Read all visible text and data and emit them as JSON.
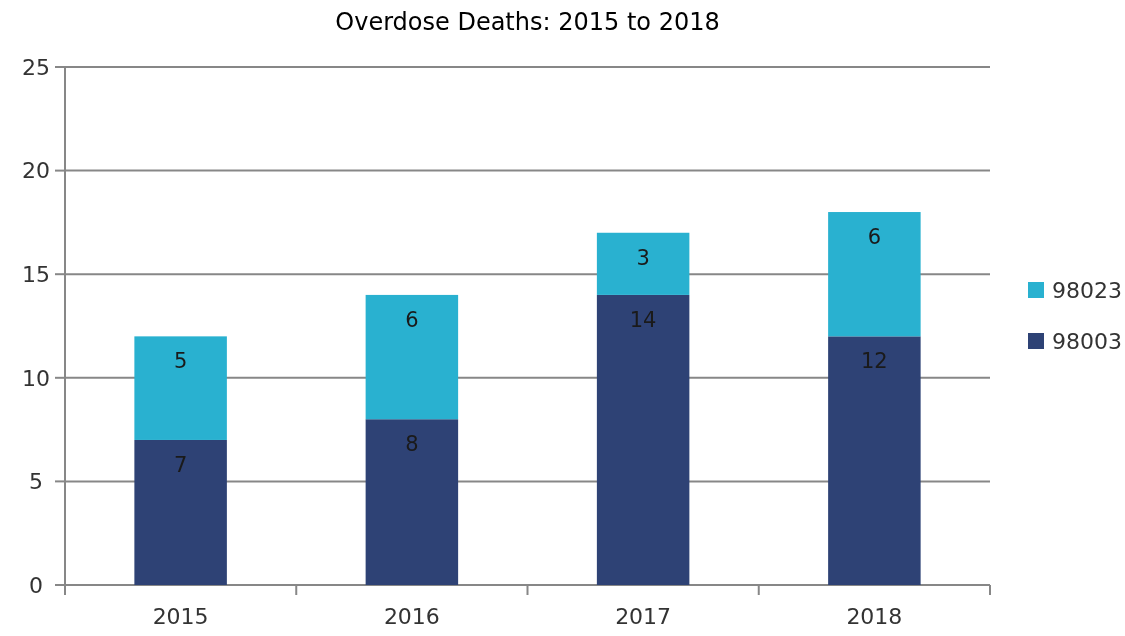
{
  "chart_data": {
    "type": "bar",
    "title": "Overdose Deaths: 2015 to 2018",
    "categories": [
      "2015",
      "2016",
      "2017",
      "2018"
    ],
    "series": [
      {
        "name": "98003",
        "color": "#2e4275",
        "values": [
          7,
          8,
          14,
          12
        ]
      },
      {
        "name": "98023",
        "color": "#29b1d0",
        "values": [
          5,
          6,
          3,
          6
        ]
      }
    ],
    "stacked": true,
    "ylim": [
      0,
      25
    ],
    "yticks": [
      0,
      5,
      10,
      15,
      20,
      25
    ],
    "grid": "y",
    "legend": "right",
    "data_labels": true
  }
}
